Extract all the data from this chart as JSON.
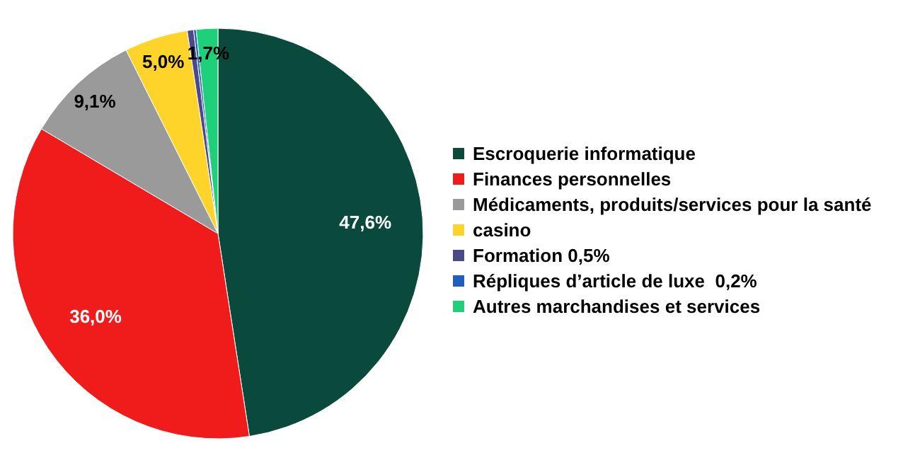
{
  "chart_data": {
    "type": "pie",
    "categories": [
      "Escroquerie informatique",
      "Finances personnelles",
      "Médicaments, produits/services pour la santé",
      "casino",
      "Formation 0,5%",
      "Répliques d’article de luxe  0,2%",
      "Autres marchandises et services"
    ],
    "values": [
      47.6,
      36.0,
      9.1,
      5.0,
      0.5,
      0.2,
      1.7
    ],
    "colors": [
      "#0a4a3c",
      "#f01c1c",
      "#9a9a9a",
      "#ffd42a",
      "#4a4a8a",
      "#1f5fbf",
      "#1ed07a"
    ],
    "value_labels": [
      "47,6%",
      "36,0%",
      "9,1%",
      "5,0%",
      null,
      null,
      "1,7%"
    ],
    "legend": "right"
  }
}
